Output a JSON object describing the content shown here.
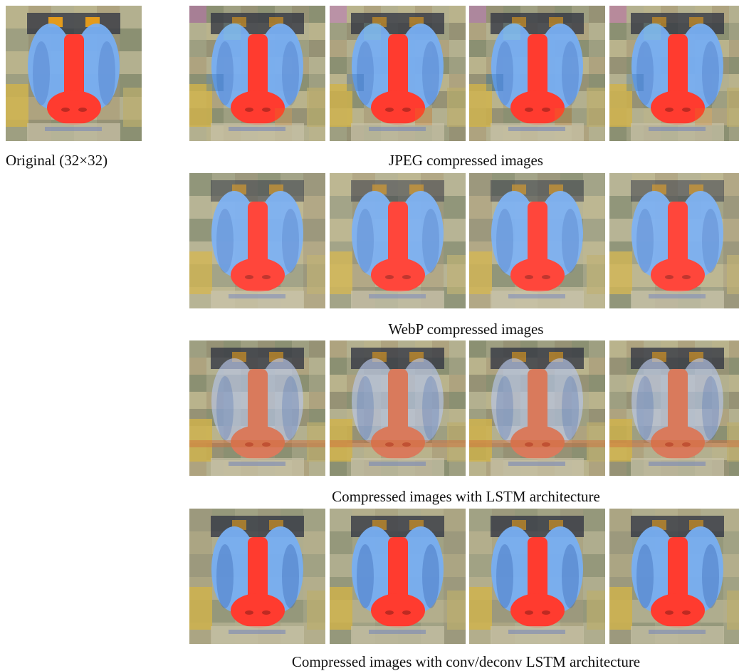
{
  "figure": {
    "original_caption": "Original (32×32)",
    "row_captions": [
      "JPEG compressed images",
      "WebP compressed images",
      "Compressed images with LSTM architecture",
      "Compressed images with conv/deconv LSTM architecture"
    ]
  },
  "image_depiction": "mandrill face",
  "colors": {
    "background": "#ffffff",
    "fur_olive": "#a8a68a",
    "cheek_blue": "#77aef2",
    "nose_red": "#ff3b2f",
    "eye_orange": "#e39b1c",
    "shadow": "#2d3240"
  }
}
